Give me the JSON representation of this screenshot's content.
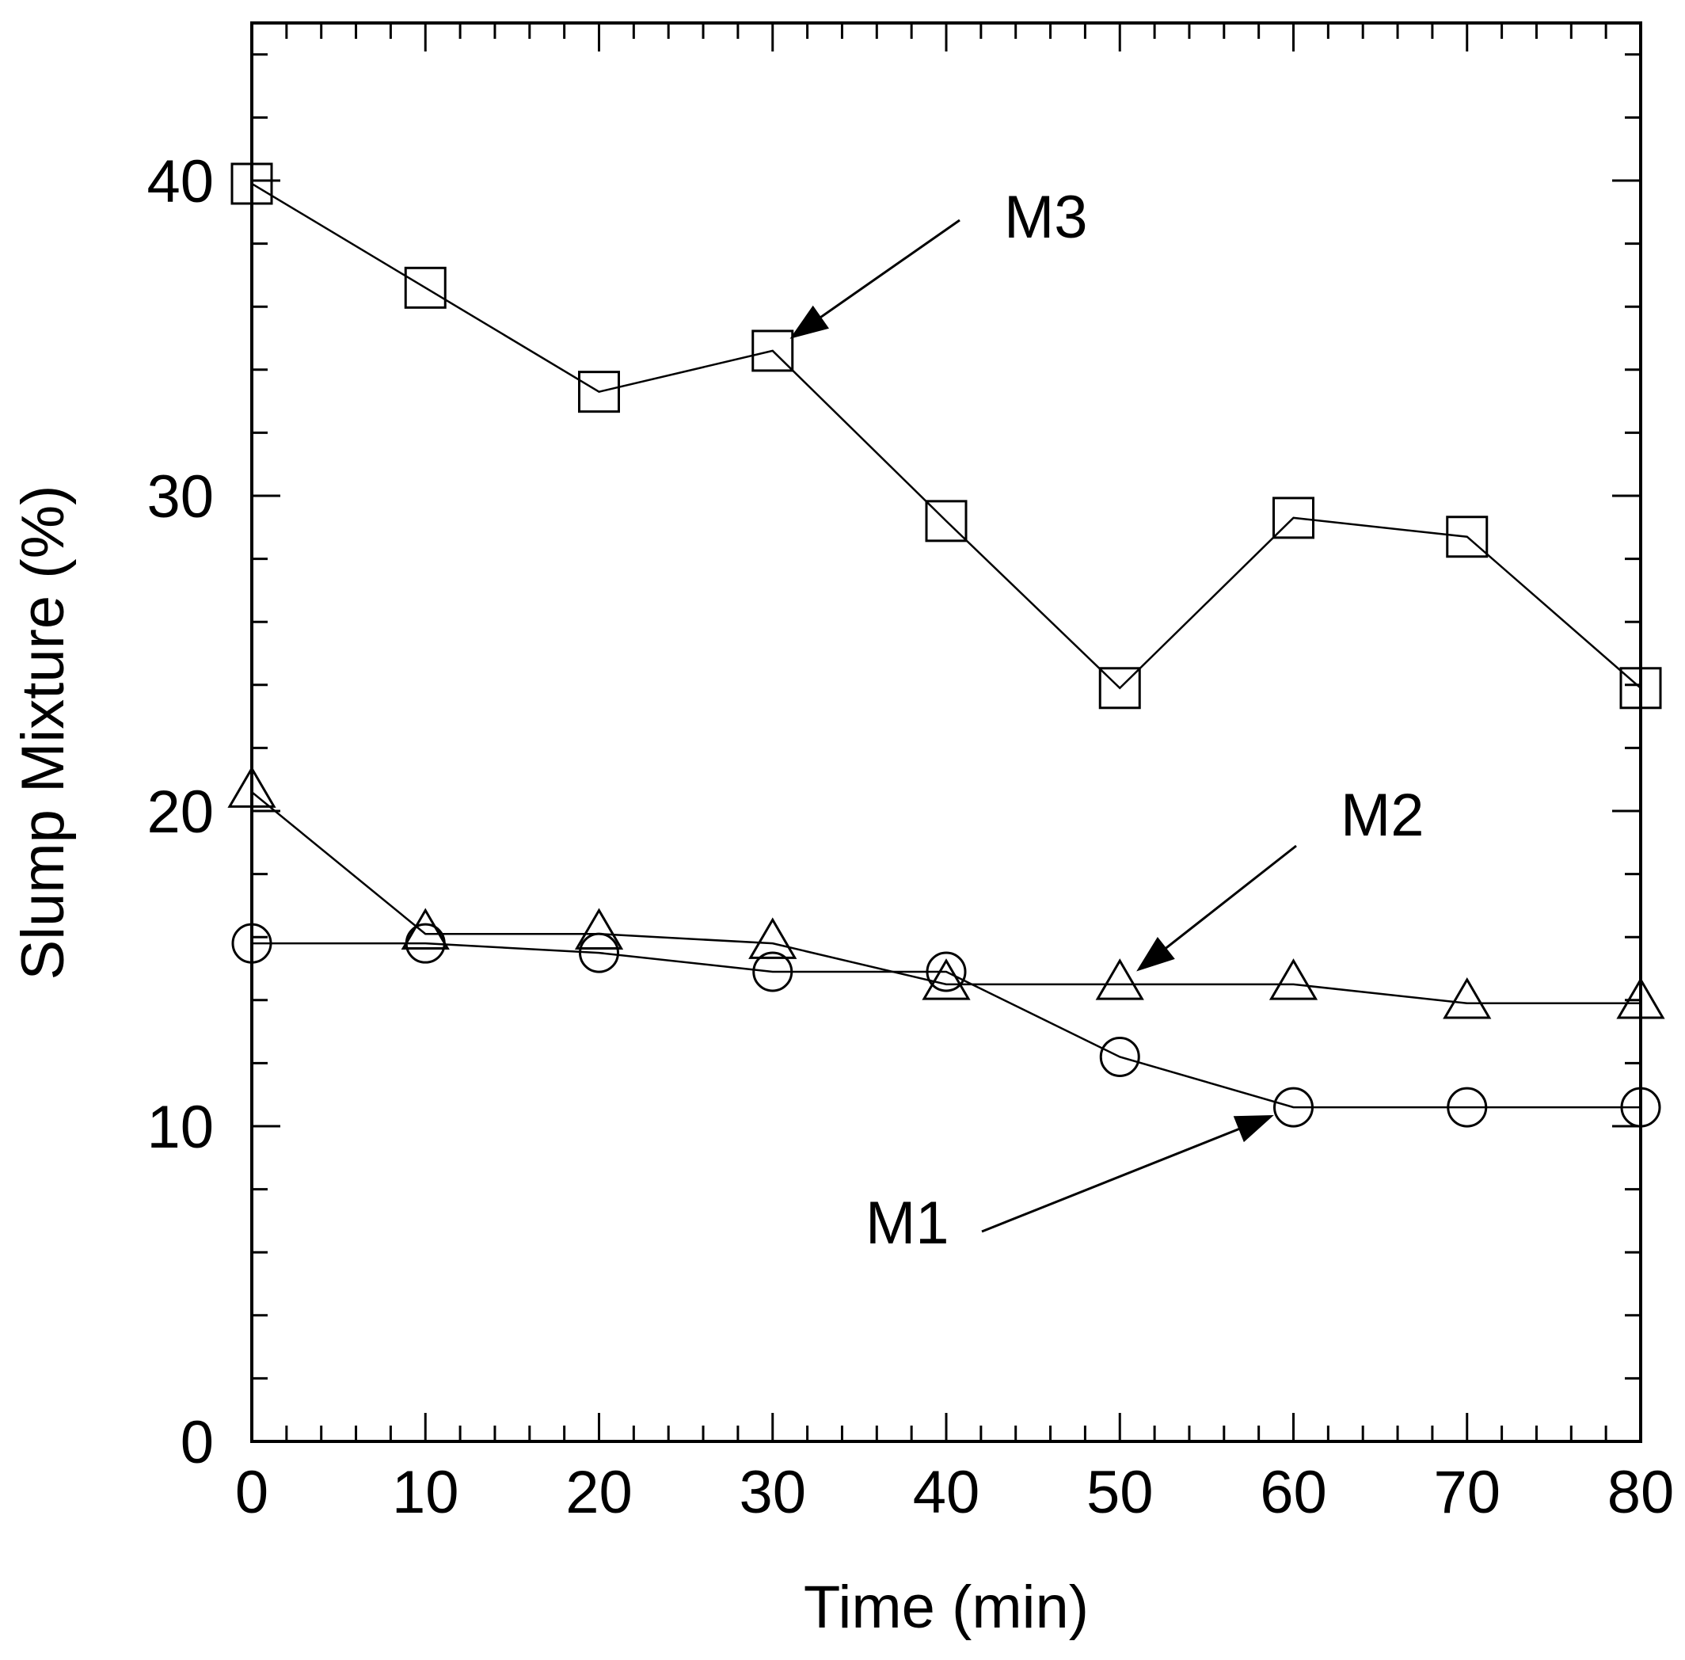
{
  "chart_data": {
    "type": "line",
    "title": "",
    "xlabel": "Time (min)",
    "ylabel": "Slump Mixture (%)",
    "xlim": [
      0,
      80
    ],
    "ylim": [
      0,
      45
    ],
    "xticks": [
      0,
      10,
      20,
      30,
      40,
      50,
      60,
      70,
      80
    ],
    "yticks": [
      0,
      10,
      20,
      30,
      40
    ],
    "xtick_labels": [
      "0",
      "10",
      "20",
      "30",
      "40",
      "50",
      "60",
      "70",
      "80"
    ],
    "ytick_labels": [
      "0",
      "10",
      "20",
      "30",
      "40"
    ],
    "x_minor_step": 2,
    "y_minor_step": 2,
    "grid": false,
    "legend": "none (series labelled by annotation arrows)",
    "x": [
      0,
      10,
      20,
      30,
      40,
      50,
      60,
      70,
      80
    ],
    "series": [
      {
        "name": "M1",
        "marker": "circle",
        "values": [
          15.8,
          15.8,
          15.5,
          14.9,
          14.9,
          12.2,
          10.6,
          10.6,
          10.6
        ]
      },
      {
        "name": "M2",
        "marker": "triangle",
        "values": [
          20.6,
          16.1,
          16.1,
          15.8,
          14.5,
          14.5,
          14.5,
          13.9,
          13.9
        ]
      },
      {
        "name": "M3",
        "marker": "square",
        "values": [
          39.9,
          36.6,
          33.3,
          34.6,
          29.2,
          23.9,
          29.3,
          28.7,
          23.9
        ]
      }
    ],
    "annotations": [
      {
        "text": "M3",
        "series": "M3",
        "points_to": {
          "x": 30,
          "y": 34.6
        }
      },
      {
        "text": "M2",
        "series": "M2",
        "points_to": {
          "x": 50,
          "y": 14.5
        }
      },
      {
        "text": "M1",
        "series": "M1",
        "points_to": {
          "x": 60,
          "y": 10.6
        }
      }
    ]
  }
}
